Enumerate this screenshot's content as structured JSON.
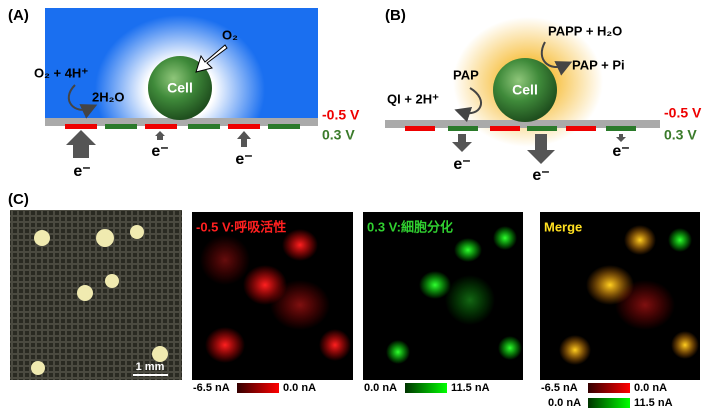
{
  "panel_a": {
    "label": "(A)",
    "oxygen": "O₂",
    "cell": "Cell",
    "reaction": "O₂ + 4H⁺",
    "product": "2H₂O",
    "potential_red": "-0.5 V",
    "potential_green": "0.3 V",
    "electrons": [
      "e⁻",
      "e⁻",
      "e⁻"
    ]
  },
  "panel_b": {
    "label": "(B)",
    "substrate": "PAPP + H₂O",
    "products": "PAP + Pi",
    "pap": "PAP",
    "qi": "QI + 2H⁺",
    "cell": "Cell",
    "potential_red": "-0.5 V",
    "potential_green": "0.3 V",
    "electrons": [
      "e⁻",
      "e⁻",
      "e⁻"
    ]
  },
  "panel_c": {
    "label": "(C)",
    "scale_bar": "1 mm",
    "maps": [
      {
        "title": "-0.5 V:呼吸活性",
        "scale": [
          "-6.5 nA",
          "0.0 nA"
        ]
      },
      {
        "title": "0.3 V:細胞分化",
        "scale": [
          "0.0 nA",
          "11.5 nA"
        ]
      },
      {
        "title": "Merge",
        "scale": [
          "-6.5 nA",
          "0.0 nA"
        ],
        "scale2": [
          "0.0 nA",
          "11.5 nA"
        ]
      }
    ]
  }
}
